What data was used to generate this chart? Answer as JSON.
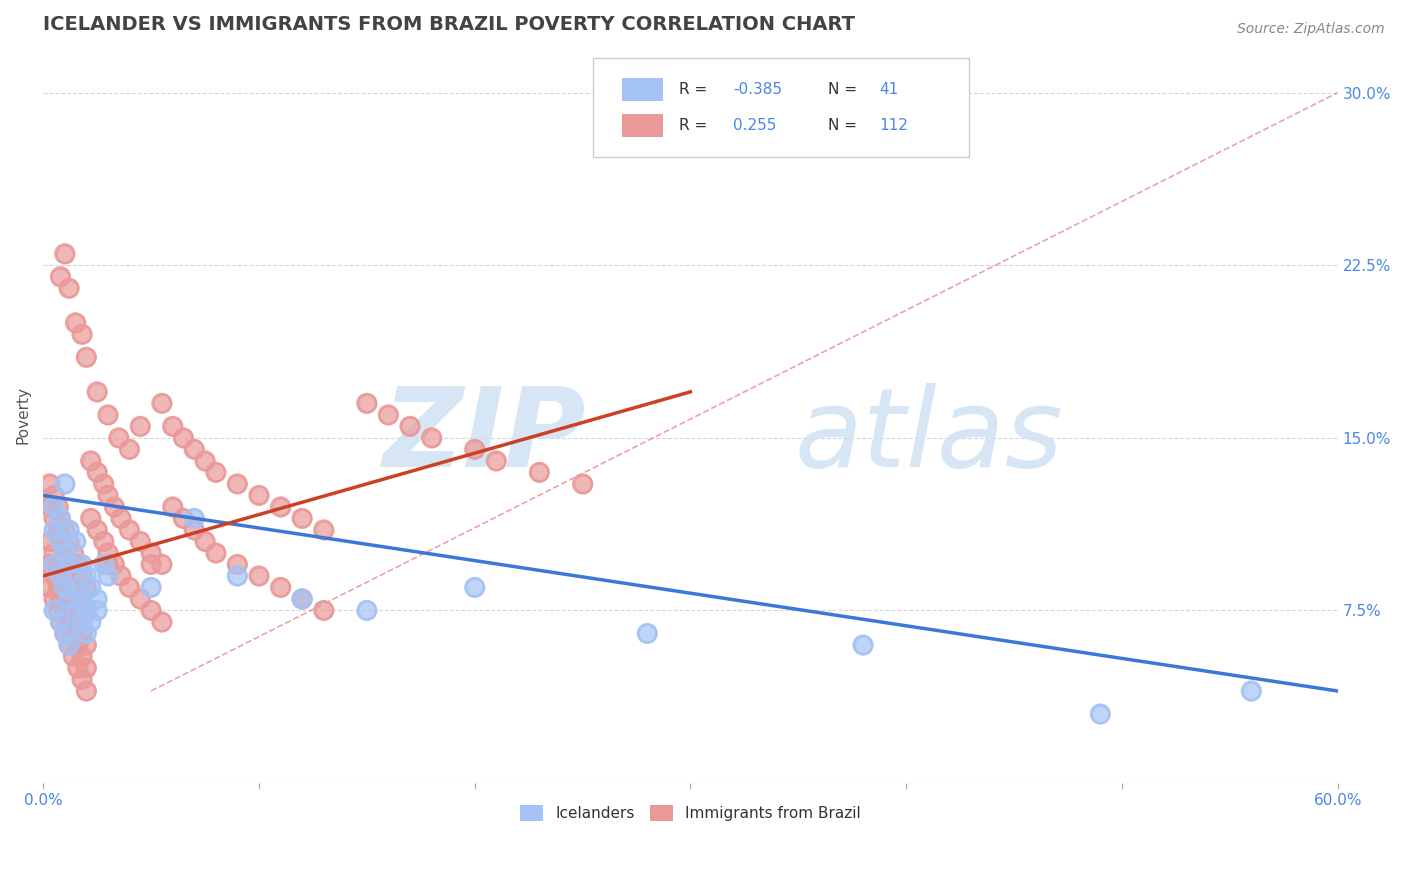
{
  "title": "ICELANDER VS IMMIGRANTS FROM BRAZIL POVERTY CORRELATION CHART",
  "source_text": "Source: ZipAtlas.com",
  "ylabel": "Poverty",
  "xlim": [
    0.0,
    0.6
  ],
  "ylim": [
    0.0,
    0.32
  ],
  "blue_R": -0.385,
  "blue_N": 41,
  "pink_R": 0.255,
  "pink_N": 112,
  "blue_color": "#a4c2f4",
  "pink_color": "#ea9999",
  "blue_line_color": "#3c78d8",
  "pink_line_color": "#cc4125",
  "dashed_line_color": "#e06666",
  "background_color": "#ffffff",
  "title_color": "#434343",
  "axis_color": "#4a86e8",
  "blue_scatter_x": [
    0.005,
    0.008,
    0.01,
    0.012,
    0.015,
    0.018,
    0.02,
    0.022,
    0.025,
    0.028,
    0.005,
    0.008,
    0.01,
    0.012,
    0.015,
    0.018,
    0.02,
    0.022,
    0.025,
    0.005,
    0.008,
    0.01,
    0.012,
    0.015,
    0.018,
    0.02,
    0.005,
    0.008,
    0.01,
    0.012,
    0.03,
    0.05,
    0.07,
    0.09,
    0.12,
    0.15,
    0.2,
    0.28,
    0.38,
    0.49,
    0.56
  ],
  "blue_scatter_y": [
    0.12,
    0.115,
    0.13,
    0.11,
    0.105,
    0.095,
    0.09,
    0.085,
    0.08,
    0.095,
    0.11,
    0.105,
    0.1,
    0.095,
    0.085,
    0.08,
    0.075,
    0.07,
    0.075,
    0.095,
    0.09,
    0.085,
    0.08,
    0.075,
    0.07,
    0.065,
    0.075,
    0.07,
    0.065,
    0.06,
    0.09,
    0.085,
    0.115,
    0.09,
    0.08,
    0.075,
    0.085,
    0.065,
    0.06,
    0.03,
    0.04
  ],
  "pink_scatter_x": [
    0.003,
    0.005,
    0.007,
    0.008,
    0.01,
    0.012,
    0.014,
    0.016,
    0.018,
    0.02,
    0.003,
    0.005,
    0.007,
    0.008,
    0.01,
    0.012,
    0.014,
    0.016,
    0.018,
    0.02,
    0.003,
    0.005,
    0.007,
    0.008,
    0.01,
    0.012,
    0.014,
    0.016,
    0.018,
    0.02,
    0.003,
    0.005,
    0.007,
    0.008,
    0.01,
    0.012,
    0.014,
    0.016,
    0.018,
    0.02,
    0.003,
    0.005,
    0.007,
    0.008,
    0.01,
    0.012,
    0.014,
    0.016,
    0.018,
    0.02,
    0.022,
    0.025,
    0.028,
    0.03,
    0.033,
    0.036,
    0.04,
    0.045,
    0.05,
    0.055,
    0.022,
    0.025,
    0.028,
    0.03,
    0.033,
    0.036,
    0.04,
    0.045,
    0.05,
    0.055,
    0.06,
    0.065,
    0.07,
    0.075,
    0.08,
    0.09,
    0.1,
    0.11,
    0.12,
    0.13,
    0.06,
    0.065,
    0.07,
    0.075,
    0.08,
    0.09,
    0.1,
    0.11,
    0.12,
    0.13,
    0.15,
    0.16,
    0.17,
    0.18,
    0.2,
    0.21,
    0.23,
    0.25,
    0.05,
    0.03,
    0.008,
    0.01,
    0.012,
    0.015,
    0.018,
    0.02,
    0.025,
    0.03,
    0.035,
    0.04,
    0.045,
    0.055
  ],
  "pink_scatter_y": [
    0.12,
    0.115,
    0.11,
    0.105,
    0.1,
    0.095,
    0.09,
    0.085,
    0.08,
    0.075,
    0.105,
    0.1,
    0.095,
    0.09,
    0.085,
    0.08,
    0.075,
    0.07,
    0.065,
    0.06,
    0.095,
    0.09,
    0.085,
    0.08,
    0.075,
    0.07,
    0.065,
    0.06,
    0.055,
    0.05,
    0.085,
    0.08,
    0.075,
    0.07,
    0.065,
    0.06,
    0.055,
    0.05,
    0.045,
    0.04,
    0.13,
    0.125,
    0.12,
    0.115,
    0.11,
    0.105,
    0.1,
    0.095,
    0.09,
    0.085,
    0.115,
    0.11,
    0.105,
    0.1,
    0.095,
    0.09,
    0.085,
    0.08,
    0.075,
    0.07,
    0.14,
    0.135,
    0.13,
    0.125,
    0.12,
    0.115,
    0.11,
    0.105,
    0.1,
    0.095,
    0.12,
    0.115,
    0.11,
    0.105,
    0.1,
    0.095,
    0.09,
    0.085,
    0.08,
    0.075,
    0.155,
    0.15,
    0.145,
    0.14,
    0.135,
    0.13,
    0.125,
    0.12,
    0.115,
    0.11,
    0.165,
    0.16,
    0.155,
    0.15,
    0.145,
    0.14,
    0.135,
    0.13,
    0.095,
    0.095,
    0.22,
    0.23,
    0.215,
    0.2,
    0.195,
    0.185,
    0.17,
    0.16,
    0.15,
    0.145,
    0.155,
    0.165
  ]
}
